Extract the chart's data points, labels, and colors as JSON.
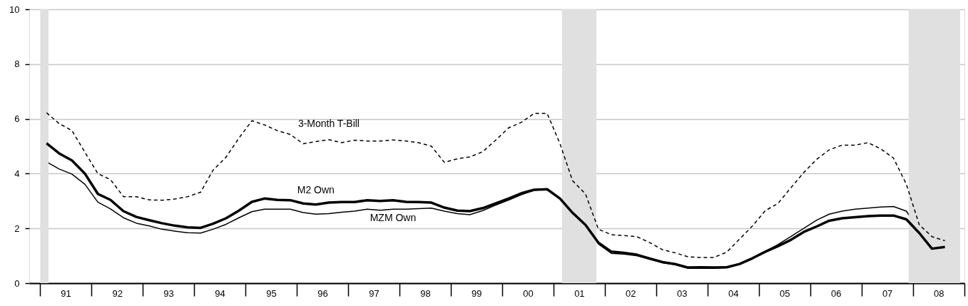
{
  "chart_data": {
    "type": "line",
    "x": [
      "1991-02-15",
      "1991-05-15",
      "1991-08-15",
      "1991-11-15",
      "1992-02-15",
      "1992-05-15",
      "1992-08-15",
      "1992-11-15",
      "1993-02-15",
      "1993-05-15",
      "1993-08-15",
      "1993-11-15",
      "1994-02-15",
      "1994-05-15",
      "1994-08-15",
      "1994-11-15",
      "1995-02-15",
      "1995-05-15",
      "1995-08-15",
      "1995-11-15",
      "1996-02-15",
      "1996-05-15",
      "1996-08-15",
      "1996-11-15",
      "1997-02-15",
      "1997-05-15",
      "1997-08-15",
      "1997-11-15",
      "1998-02-15",
      "1998-05-15",
      "1998-08-15",
      "1998-11-15",
      "1999-02-15",
      "1999-05-15",
      "1999-08-15",
      "1999-11-15",
      "2000-02-15",
      "2000-05-15",
      "2000-08-15",
      "2000-11-15",
      "2001-02-15",
      "2001-05-15",
      "2001-08-15",
      "2001-11-15",
      "2002-02-15",
      "2002-05-15",
      "2002-08-15",
      "2002-11-15",
      "2003-02-15",
      "2003-05-15",
      "2003-08-15",
      "2003-11-15",
      "2004-02-15",
      "2004-05-15",
      "2004-08-15",
      "2004-11-15",
      "2005-02-15",
      "2005-05-15",
      "2005-08-15",
      "2005-11-15",
      "2006-02-15",
      "2006-05-15",
      "2006-08-15",
      "2006-11-15",
      "2007-02-15",
      "2007-05-15",
      "2007-08-15",
      "2007-11-15",
      "2008-02-15",
      "2008-05-15",
      "2008-08-15"
    ],
    "series": [
      {
        "name": "MZM Own",
        "color": "#000000",
        "line_style": "solid",
        "values": [
          4.43,
          4.17,
          3.98,
          3.61,
          2.96,
          2.71,
          2.39,
          2.19,
          2.09,
          1.97,
          1.9,
          1.84,
          1.83,
          1.97,
          2.15,
          2.39,
          2.61,
          2.7,
          2.7,
          2.7,
          2.58,
          2.52,
          2.54,
          2.59,
          2.63,
          2.7,
          2.66,
          2.7,
          2.7,
          2.72,
          2.74,
          2.63,
          2.54,
          2.5,
          2.65,
          2.85,
          3.03,
          3.23,
          3.39,
          3.43,
          3.09,
          2.57,
          2.13,
          1.43,
          1.09,
          1.06,
          1.0,
          0.87,
          0.74,
          0.67,
          0.54,
          0.54,
          0.54,
          0.57,
          0.7,
          0.91,
          1.17,
          1.41,
          1.7,
          2.0,
          2.3,
          2.52,
          2.63,
          2.7,
          2.74,
          2.78,
          2.8,
          2.63,
          1.91,
          1.35,
          1.3
        ]
      },
      {
        "name": "M2 Own",
        "color": "#000000",
        "line_style": "solid",
        "values": [
          5.11,
          4.74,
          4.48,
          4.0,
          3.26,
          3.04,
          2.63,
          2.42,
          2.3,
          2.19,
          2.1,
          2.04,
          2.02,
          2.17,
          2.37,
          2.65,
          2.97,
          3.09,
          3.04,
          3.03,
          2.91,
          2.87,
          2.94,
          2.96,
          2.96,
          3.03,
          3.0,
          3.03,
          2.97,
          2.96,
          2.94,
          2.76,
          2.65,
          2.63,
          2.74,
          2.91,
          3.09,
          3.28,
          3.41,
          3.43,
          3.09,
          2.57,
          2.13,
          1.48,
          1.15,
          1.11,
          1.04,
          0.9,
          0.77,
          0.7,
          0.57,
          0.58,
          0.57,
          0.58,
          0.7,
          0.91,
          1.15,
          1.35,
          1.58,
          1.87,
          2.07,
          2.28,
          2.37,
          2.41,
          2.45,
          2.47,
          2.47,
          2.33,
          1.83,
          1.26,
          1.32
        ]
      },
      {
        "name": "3-Month T-Bill",
        "color": "#000000",
        "line_style": "dashed",
        "values": [
          6.22,
          5.83,
          5.57,
          4.78,
          4.0,
          3.78,
          3.16,
          3.16,
          3.04,
          3.03,
          3.07,
          3.16,
          3.32,
          4.13,
          4.6,
          5.3,
          5.93,
          5.78,
          5.57,
          5.43,
          5.09,
          5.17,
          5.24,
          5.13,
          5.22,
          5.19,
          5.19,
          5.23,
          5.19,
          5.13,
          5.0,
          4.41,
          4.54,
          4.61,
          4.8,
          5.22,
          5.67,
          5.87,
          6.2,
          6.2,
          5.09,
          3.74,
          3.26,
          1.97,
          1.77,
          1.74,
          1.7,
          1.48,
          1.22,
          1.11,
          0.96,
          0.94,
          0.94,
          1.13,
          1.61,
          2.09,
          2.65,
          2.91,
          3.48,
          4.04,
          4.52,
          4.87,
          5.04,
          5.04,
          5.13,
          4.91,
          4.57,
          3.61,
          2.13,
          1.7,
          1.55
        ]
      }
    ],
    "bands": [
      {
        "axis": "x",
        "from": "1991-01-01",
        "to": "1991-03-01",
        "color": "#e0e0e0"
      },
      {
        "axis": "x",
        "from": "2001-03-01",
        "to": "2001-11-01",
        "color": "#e0e0e0"
      },
      {
        "axis": "x",
        "from": "2007-12-01",
        "to": "2008-12-01",
        "color": "#e0e0e0"
      }
    ],
    "xlim": [
      "1990-10-15",
      "2009-01-01"
    ],
    "xticks": [
      {
        "value": "1991-07-01",
        "label": "91"
      },
      {
        "value": "1992-07-01",
        "label": "92"
      },
      {
        "value": "1993-07-01",
        "label": "93"
      },
      {
        "value": "1994-07-01",
        "label": "94"
      },
      {
        "value": "1995-07-01",
        "label": "95"
      },
      {
        "value": "1996-07-01",
        "label": "96"
      },
      {
        "value": "1997-07-01",
        "label": "97"
      },
      {
        "value": "1998-07-01",
        "label": "98"
      },
      {
        "value": "1999-07-01",
        "label": "99"
      },
      {
        "value": "2000-07-01",
        "label": "00"
      },
      {
        "value": "2001-07-01",
        "label": "01"
      },
      {
        "value": "2002-07-01",
        "label": "02"
      },
      {
        "value": "2003-07-01",
        "label": "03"
      },
      {
        "value": "2004-07-01",
        "label": "04"
      },
      {
        "value": "2005-07-01",
        "label": "05"
      },
      {
        "value": "2006-07-01",
        "label": "06"
      },
      {
        "value": "2007-07-01",
        "label": "07"
      },
      {
        "value": "2008-07-01",
        "label": "08"
      }
    ],
    "ylim": [
      0,
      10
    ],
    "yticks": [
      0,
      2,
      4,
      6,
      8,
      10
    ],
    "grid": "y",
    "legend": false,
    "marker": "none"
  }
}
